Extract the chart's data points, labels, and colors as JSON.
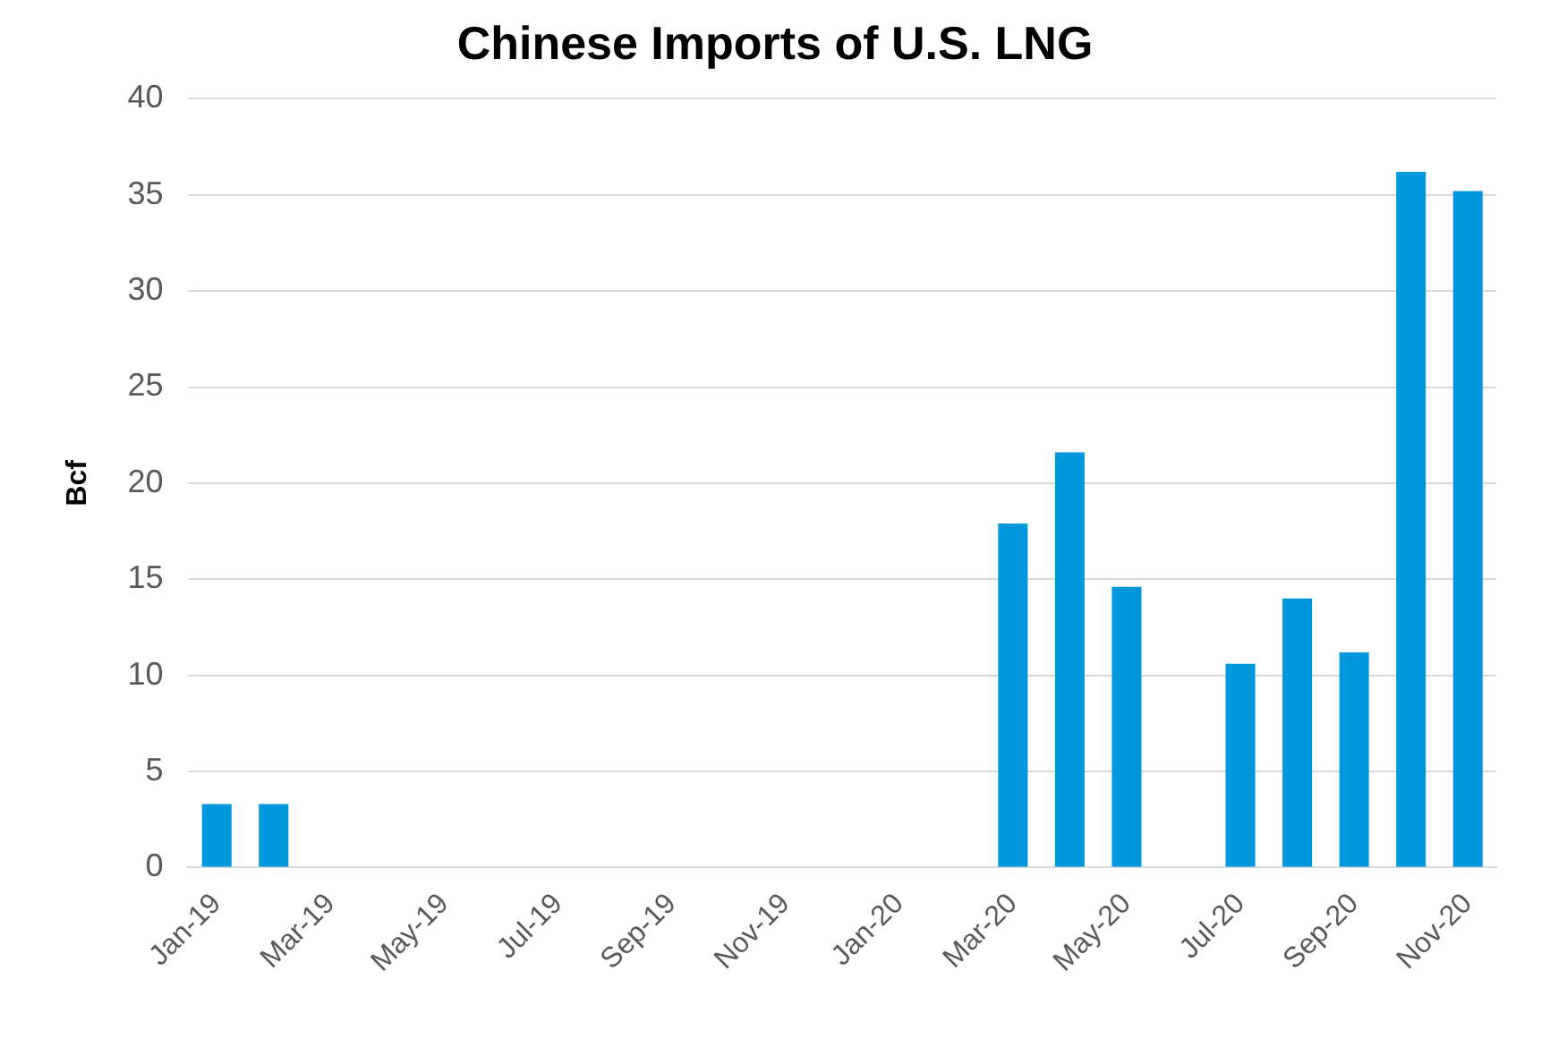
{
  "chart_data": {
    "type": "bar",
    "title": "Chinese Imports of U.S. LNG",
    "ylabel": "Bcf",
    "categories": [
      "Jan-19",
      null,
      "Mar-19",
      null,
      "May-19",
      null,
      "Jul-19",
      null,
      "Sep-19",
      null,
      "Nov-19",
      null,
      "Jan-20",
      null,
      "Mar-20",
      null,
      "May-20",
      null,
      "Jul-20",
      null,
      "Sep-20",
      null,
      "Nov-20"
    ],
    "values": [
      3.3,
      3.3,
      0,
      0,
      0,
      0,
      0,
      0,
      0,
      0,
      0,
      0,
      0,
      0,
      17.9,
      21.6,
      14.6,
      0,
      10.6,
      14.0,
      11.2,
      36.2,
      35.2
    ],
    "color": "#0098dc",
    "ylim": [
      0,
      40
    ],
    "yticks": [
      0,
      5,
      10,
      15,
      20,
      25,
      30,
      35,
      40
    ],
    "grid": "y",
    "legend": false
  }
}
